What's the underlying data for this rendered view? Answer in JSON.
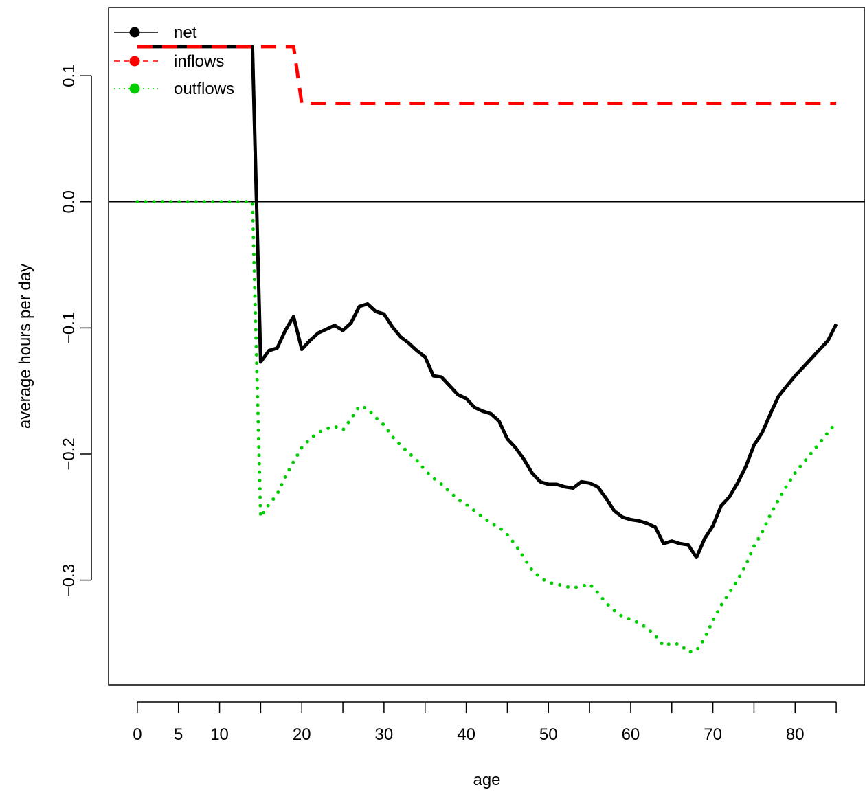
{
  "chart_data": {
    "type": "line",
    "xlabel": "age",
    "ylabel": "average hours per day",
    "xlim": [
      -3.5,
      88.5
    ],
    "ylim": [
      -0.383,
      0.154
    ],
    "x_ticks": [
      0,
      5,
      10,
      15,
      20,
      25,
      30,
      35,
      40,
      45,
      50,
      55,
      60,
      65,
      70,
      75,
      80,
      85
    ],
    "x_tick_labels": [
      {
        "value": 0,
        "label": "0"
      },
      {
        "value": 5,
        "label": "5"
      },
      {
        "value": 10,
        "label": "10"
      },
      {
        "value": 20,
        "label": "20"
      },
      {
        "value": 30,
        "label": "30"
      },
      {
        "value": 40,
        "label": "40"
      },
      {
        "value": 50,
        "label": "50"
      },
      {
        "value": 60,
        "label": "60"
      },
      {
        "value": 70,
        "label": "70"
      },
      {
        "value": 80,
        "label": "80"
      }
    ],
    "y_ticks": [
      {
        "value": 0.1,
        "label": "0.1"
      },
      {
        "value": 0.0,
        "label": "0.0"
      },
      {
        "value": -0.1,
        "label": "−0.1"
      },
      {
        "value": -0.2,
        "label": "−0.2"
      },
      {
        "value": -0.3,
        "label": "−0.3"
      }
    ],
    "reference_line_y": 0,
    "legend_position": "top-left",
    "series": [
      {
        "name": "net",
        "color": "#000000",
        "style": "solid",
        "x": [
          0,
          1,
          2,
          3,
          4,
          5,
          6,
          7,
          8,
          9,
          10,
          11,
          12,
          13,
          14,
          15,
          16,
          17,
          18,
          19,
          20,
          21,
          22,
          23,
          24,
          25,
          26,
          27,
          28,
          29,
          30,
          31,
          32,
          33,
          34,
          35,
          36,
          37,
          38,
          39,
          40,
          41,
          42,
          43,
          44,
          45,
          46,
          47,
          48,
          49,
          50,
          51,
          52,
          53,
          54,
          55,
          56,
          57,
          58,
          59,
          60,
          61,
          62,
          63,
          64,
          65,
          66,
          67,
          68,
          69,
          70,
          71,
          72,
          73,
          74,
          75,
          76,
          77,
          78,
          79,
          80,
          81,
          82,
          83,
          84,
          85
        ],
        "y": [
          0.123,
          0.123,
          0.123,
          0.123,
          0.123,
          0.123,
          0.123,
          0.123,
          0.123,
          0.123,
          0.123,
          0.123,
          0.123,
          0.123,
          0.123,
          -0.127,
          -0.118,
          -0.116,
          -0.102,
          -0.091,
          -0.117,
          -0.11,
          -0.104,
          -0.101,
          -0.098,
          -0.102,
          -0.096,
          -0.083,
          -0.081,
          -0.087,
          -0.089,
          -0.099,
          -0.107,
          -0.112,
          -0.118,
          -0.123,
          -0.138,
          -0.139,
          -0.146,
          -0.153,
          -0.156,
          -0.163,
          -0.166,
          -0.168,
          -0.174,
          -0.188,
          -0.195,
          -0.204,
          -0.215,
          -0.222,
          -0.224,
          -0.224,
          -0.226,
          -0.227,
          -0.222,
          -0.223,
          -0.226,
          -0.235,
          -0.245,
          -0.25,
          -0.252,
          -0.253,
          -0.255,
          -0.258,
          -0.271,
          -0.269,
          -0.271,
          -0.272,
          -0.282,
          -0.267,
          -0.257,
          -0.241,
          -0.234,
          -0.223,
          -0.21,
          -0.193,
          -0.183,
          -0.168,
          -0.154,
          -0.146,
          -0.138,
          -0.131,
          -0.124,
          -0.117,
          -0.11,
          -0.097
        ]
      },
      {
        "name": "inflows",
        "color": "#ff0000",
        "style": "dashed",
        "x": [
          0,
          1,
          2,
          3,
          4,
          5,
          6,
          7,
          8,
          9,
          10,
          11,
          12,
          13,
          14,
          15,
          16,
          17,
          18,
          19,
          20,
          21,
          22,
          23,
          24,
          25,
          26,
          27,
          28,
          29,
          30,
          31,
          32,
          33,
          34,
          35,
          36,
          37,
          38,
          39,
          40,
          41,
          42,
          43,
          44,
          45,
          46,
          47,
          48,
          49,
          50,
          51,
          52,
          53,
          54,
          55,
          56,
          57,
          58,
          59,
          60,
          61,
          62,
          63,
          64,
          65,
          66,
          67,
          68,
          69,
          70,
          71,
          72,
          73,
          74,
          75,
          76,
          77,
          78,
          79,
          80,
          81,
          82,
          83,
          84,
          85
        ],
        "y": [
          0.123,
          0.123,
          0.123,
          0.123,
          0.123,
          0.123,
          0.123,
          0.123,
          0.123,
          0.123,
          0.123,
          0.123,
          0.123,
          0.123,
          0.123,
          0.123,
          0.123,
          0.123,
          0.123,
          0.123,
          0.078,
          0.078,
          0.078,
          0.078,
          0.078,
          0.078,
          0.078,
          0.078,
          0.078,
          0.078,
          0.078,
          0.078,
          0.078,
          0.078,
          0.078,
          0.078,
          0.078,
          0.078,
          0.078,
          0.078,
          0.078,
          0.078,
          0.078,
          0.078,
          0.078,
          0.078,
          0.078,
          0.078,
          0.078,
          0.078,
          0.078,
          0.078,
          0.078,
          0.078,
          0.078,
          0.078,
          0.078,
          0.078,
          0.078,
          0.078,
          0.078,
          0.078,
          0.078,
          0.078,
          0.078,
          0.078,
          0.078,
          0.078,
          0.078,
          0.078,
          0.078,
          0.078,
          0.078,
          0.078,
          0.078,
          0.078,
          0.078,
          0.078,
          0.078,
          0.078,
          0.078,
          0.078,
          0.078,
          0.078,
          0.078,
          0.078
        ]
      },
      {
        "name": "outflows",
        "color": "#00cd00",
        "style": "dotted",
        "x": [
          0,
          1,
          2,
          3,
          4,
          5,
          6,
          7,
          8,
          9,
          10,
          11,
          12,
          13,
          14,
          15,
          16,
          17,
          18,
          19,
          20,
          21,
          22,
          23,
          24,
          25,
          26,
          27,
          28,
          29,
          30,
          31,
          32,
          33,
          34,
          35,
          36,
          37,
          38,
          39,
          40,
          41,
          42,
          43,
          44,
          45,
          46,
          47,
          48,
          49,
          50,
          51,
          52,
          53,
          54,
          55,
          56,
          57,
          58,
          59,
          60,
          61,
          62,
          63,
          64,
          65,
          66,
          67,
          68,
          69,
          70,
          71,
          72,
          73,
          74,
          75,
          76,
          77,
          78,
          79,
          80,
          81,
          82,
          83,
          84,
          85
        ],
        "y": [
          0,
          0,
          0,
          0,
          0,
          0,
          0,
          0,
          0,
          0,
          0,
          0,
          0,
          0,
          0,
          -0.25,
          -0.24,
          -0.232,
          -0.218,
          -0.206,
          -0.195,
          -0.188,
          -0.183,
          -0.18,
          -0.178,
          -0.181,
          -0.172,
          -0.162,
          -0.164,
          -0.171,
          -0.177,
          -0.186,
          -0.193,
          -0.199,
          -0.205,
          -0.213,
          -0.219,
          -0.224,
          -0.23,
          -0.236,
          -0.24,
          -0.245,
          -0.25,
          -0.255,
          -0.258,
          -0.264,
          -0.272,
          -0.282,
          -0.292,
          -0.298,
          -0.302,
          -0.303,
          -0.305,
          -0.306,
          -0.305,
          -0.303,
          -0.31,
          -0.318,
          -0.324,
          -0.329,
          -0.331,
          -0.334,
          -0.338,
          -0.344,
          -0.352,
          -0.35,
          -0.351,
          -0.357,
          -0.356,
          -0.346,
          -0.332,
          -0.32,
          -0.31,
          -0.3,
          -0.288,
          -0.273,
          -0.262,
          -0.248,
          -0.236,
          -0.225,
          -0.215,
          -0.207,
          -0.199,
          -0.191,
          -0.183,
          -0.175
        ]
      }
    ]
  }
}
